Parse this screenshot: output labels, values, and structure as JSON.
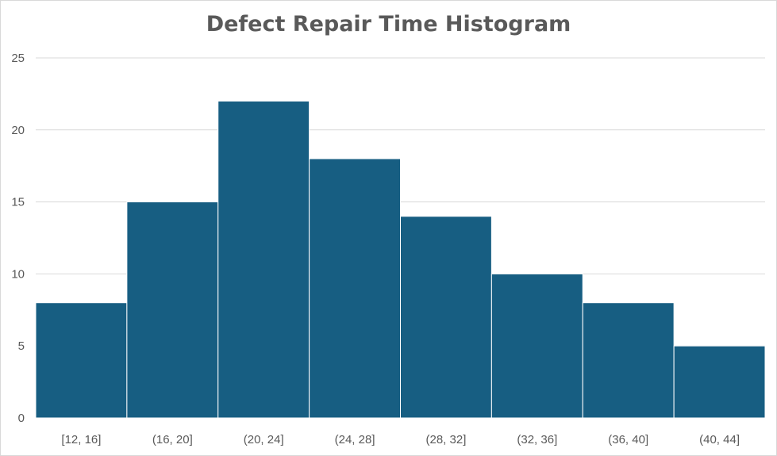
{
  "chart_data": {
    "type": "bar",
    "title": "Defect Repair Time Histogram",
    "xlabel": "",
    "ylabel": "",
    "categories": [
      "[12, 16]",
      "(16, 20]",
      "(20, 24]",
      "(24, 28]",
      "(28, 32]",
      "(32, 36]",
      "(36, 40]",
      "(40, 44]"
    ],
    "values": [
      8,
      15,
      22,
      18,
      14,
      10,
      8,
      5
    ],
    "ylim": [
      0,
      25
    ],
    "yticks": [
      0,
      5,
      10,
      15,
      20,
      25
    ],
    "grid": true,
    "legend": "none",
    "colors": {
      "bar": "#175e82",
      "bar_border": "#ffffff",
      "grid": "#d9d9d9",
      "text": "#595959"
    }
  }
}
